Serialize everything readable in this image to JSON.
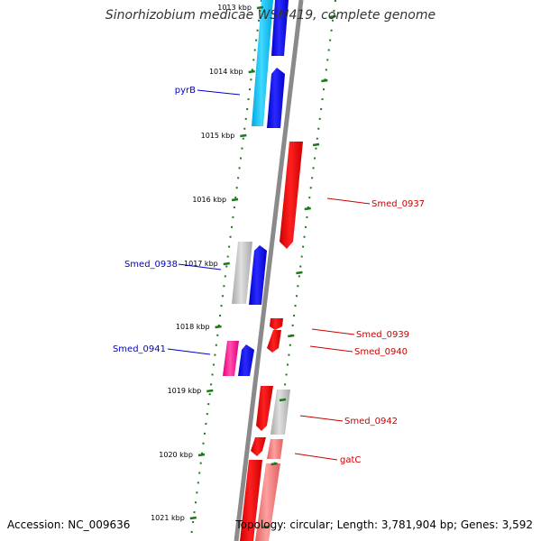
{
  "title": "Sinorhizobium medicae WSM419, complete genome",
  "footer": {
    "accession": "Accession: NC_009636",
    "summary": "Topology: circular; Length: 3,781,904 bp; Genes: 3,592"
  },
  "colors": {
    "backbone": "#8a8a8a",
    "tick": "#1a7a1a",
    "forward_gene": "#0000ee",
    "reverse_gene": "#ee0000",
    "forward_label": "#0000cc",
    "reverse_label": "#cc0000"
  },
  "ticks": [
    {
      "label": "1013 kbp"
    },
    {
      "label": "1014 kbp"
    },
    {
      "label": "1015 kbp"
    },
    {
      "label": "1016 kbp"
    },
    {
      "label": "1017 kbp"
    },
    {
      "label": "1018 kbp"
    },
    {
      "label": "1019 kbp"
    },
    {
      "label": "1020 kbp"
    },
    {
      "label": "1021 kbp"
    }
  ],
  "gene_labels": [
    {
      "text": "pyrB",
      "strand": "forward"
    },
    {
      "text": "Smed_0938",
      "strand": "forward"
    },
    {
      "text": "Smed_0941",
      "strand": "forward"
    },
    {
      "text": "Smed_0937",
      "strand": "reverse"
    },
    {
      "text": "Smed_0939",
      "strand": "reverse"
    },
    {
      "text": "Smed_0940",
      "strand": "reverse"
    },
    {
      "text": "Smed_0942",
      "strand": "reverse"
    },
    {
      "text": "gatC",
      "strand": "reverse"
    }
  ]
}
